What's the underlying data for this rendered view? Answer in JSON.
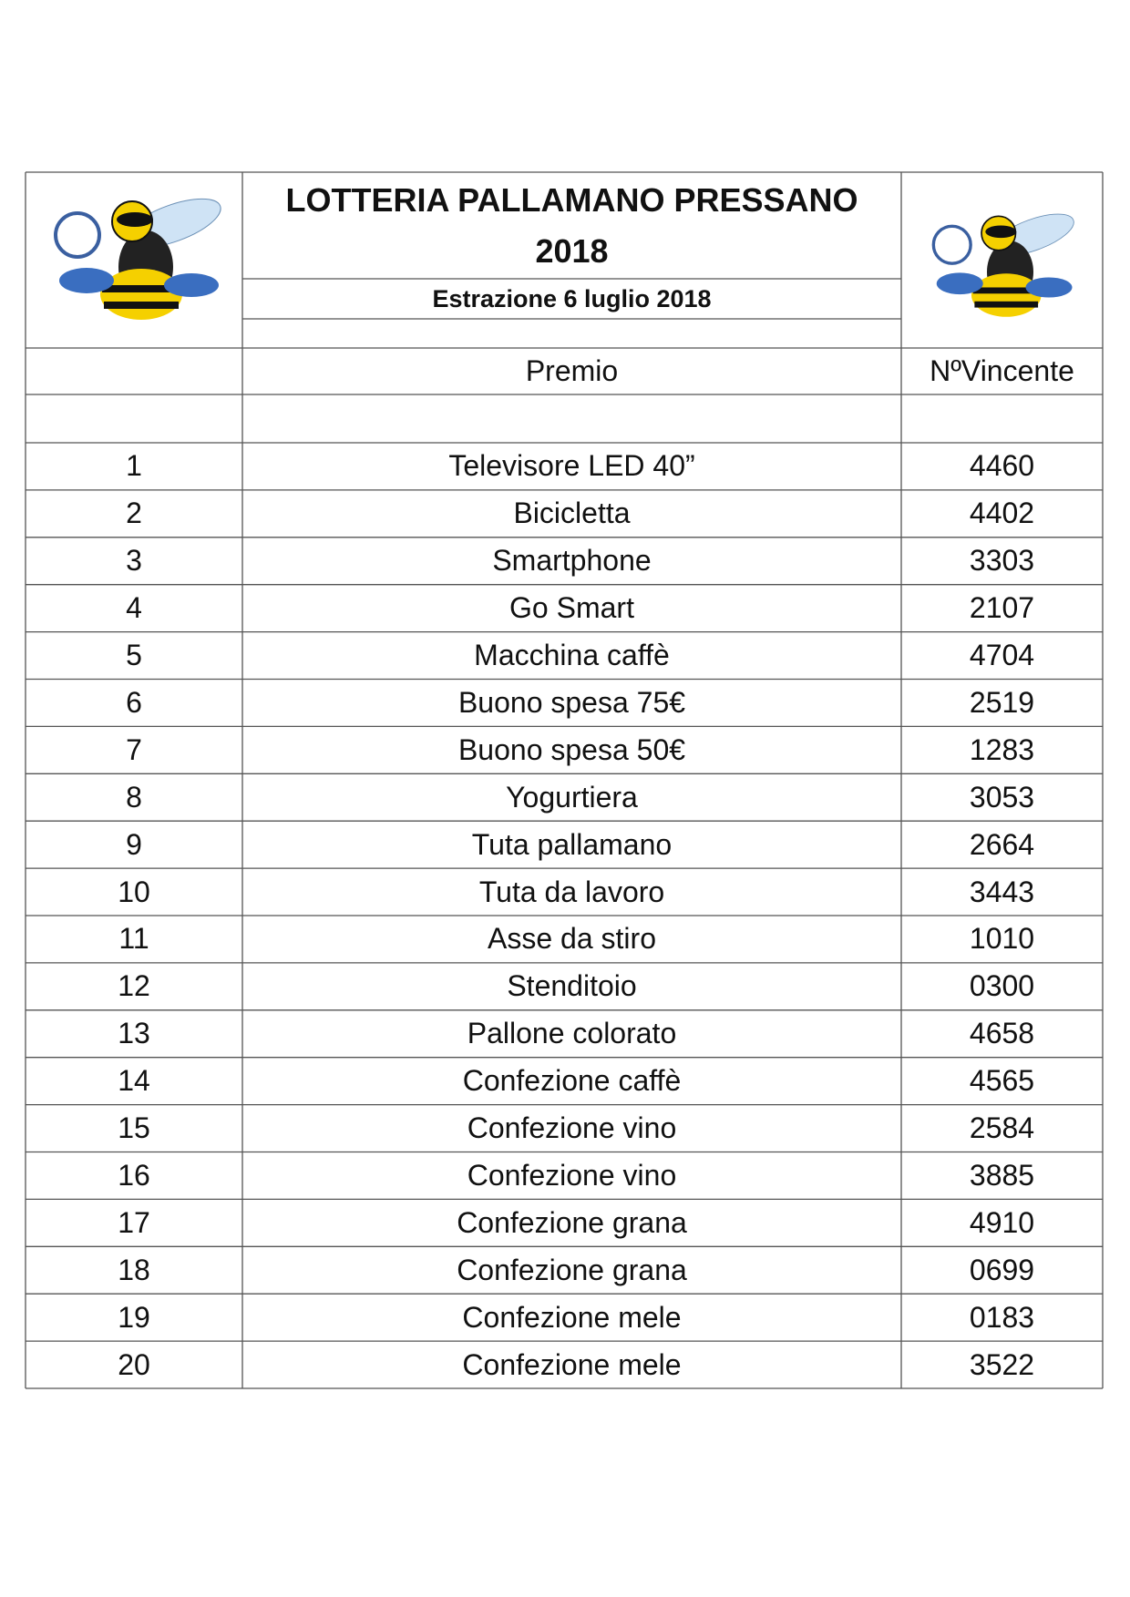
{
  "header": {
    "title": "LOTTERIA PALLAMANO PRESSANO 2018",
    "subtitle": "Estrazione 6 luglio 2018"
  },
  "table": {
    "columns": [
      "Premio",
      "NºVincente"
    ],
    "rows": [
      [
        "1",
        "Televisore LED 40”",
        "4460"
      ],
      [
        "2",
        "Bicicletta",
        "4402"
      ],
      [
        "3",
        "Smartphone",
        "3303"
      ],
      [
        "4",
        "Go Smart",
        "2107"
      ],
      [
        "5",
        "Macchina caffè",
        "4704"
      ],
      [
        "6",
        "Buono spesa 75€",
        "2519"
      ],
      [
        "7",
        "Buono spesa 50€",
        "1283"
      ],
      [
        "8",
        "Yogurtiera",
        "3053"
      ],
      [
        "9",
        "Tuta pallamano",
        "2664"
      ],
      [
        "10",
        "Tuta da lavoro",
        "3443"
      ],
      [
        "11",
        "Asse da stiro",
        "1010"
      ],
      [
        "12",
        "Stenditoio",
        "0300"
      ],
      [
        "13",
        "Pallone colorato",
        "4658"
      ],
      [
        "14",
        "Confezione caffè",
        "4565"
      ],
      [
        "15",
        "Confezione vino",
        "2584"
      ],
      [
        "16",
        "Confezione vino",
        "3885"
      ],
      [
        "17",
        "Confezione grana",
        "4910"
      ],
      [
        "18",
        "Confezione grana",
        "0699"
      ],
      [
        "19",
        "Confezione mele",
        "0183"
      ],
      [
        "20",
        "Confezione mele",
        "3522"
      ]
    ]
  }
}
